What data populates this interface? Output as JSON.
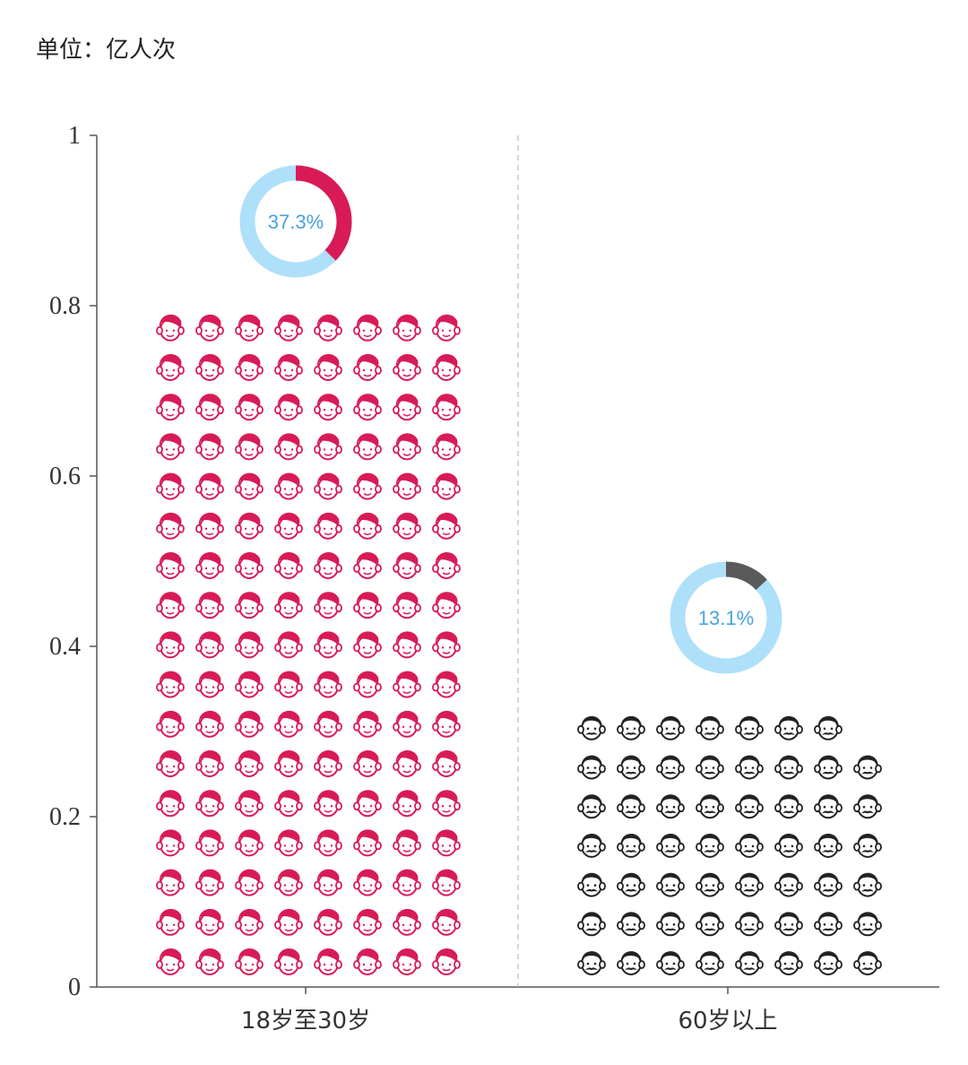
{
  "unit_label": "单位：亿人次",
  "colors": {
    "young": "#d81b56",
    "old": "#222222",
    "donut_track": "#aee0fa",
    "donut_young": "#d81b56",
    "donut_old": "#5a5a5a",
    "donut_text": "#4aa3e0",
    "axis": "#555555",
    "divider": "#bbbbbb"
  },
  "chart_data": {
    "type": "bar",
    "ylabel": "",
    "ylim": [
      0,
      1
    ],
    "y_ticks": [
      "0",
      "0.2",
      "0.4",
      "0.6",
      "0.8",
      "1"
    ],
    "grid": false,
    "categories": [
      "18岁至30岁",
      "60岁以上"
    ],
    "values": [
      0.78,
      0.32
    ],
    "shares": [
      {
        "category": "18岁至30岁",
        "label": "37.3%",
        "value": 37.3
      },
      {
        "category": "60岁以上",
        "label": "13.1%",
        "value": 13.1
      }
    ],
    "icons": [
      {
        "category": "18岁至30岁",
        "icon": "young-face-icon",
        "columns": 8,
        "rows": 17,
        "first_row": 8
      },
      {
        "category": "60岁以上",
        "icon": "mustache-face-icon",
        "columns": 8,
        "rows": 7,
        "first_row": 7
      }
    ]
  }
}
